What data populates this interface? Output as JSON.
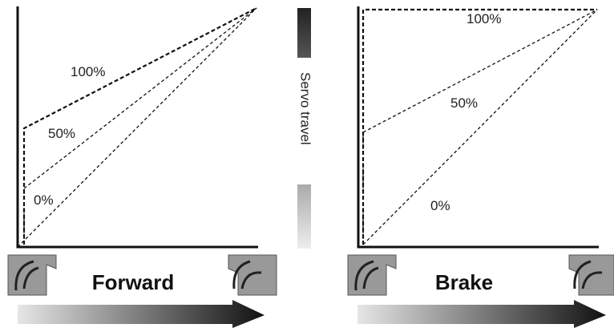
{
  "panels": [
    {
      "title": "Forward",
      "curves": [
        {
          "label": "100%"
        },
        {
          "label": "50%"
        },
        {
          "label": "0%"
        }
      ]
    },
    {
      "title": "Brake",
      "curves": [
        {
          "label": "100%"
        },
        {
          "label": "50%"
        },
        {
          "label": "0%"
        }
      ]
    }
  ],
  "servo_axis": {
    "label": "Servo travel"
  }
}
